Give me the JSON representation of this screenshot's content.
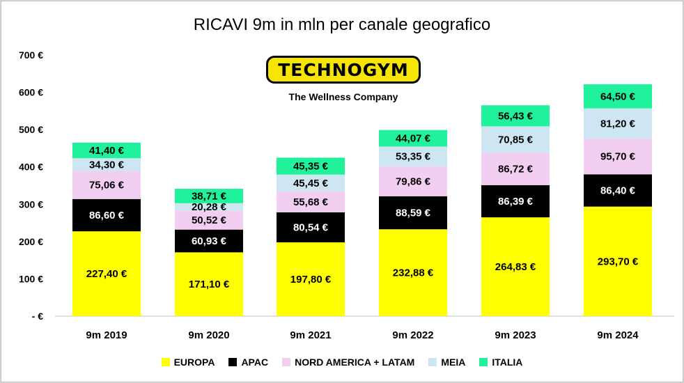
{
  "chart_data": {
    "type": "bar",
    "stacked": true,
    "title": "RICAVI 9m in mln per canale geografico",
    "categories": [
      "9m 2019",
      "9m 2020",
      "9m 2021",
      "9m 2022",
      "9m 2023",
      "9m 2024"
    ],
    "ylim": [
      0,
      700
    ],
    "yticks": [
      0,
      100,
      200,
      300,
      400,
      500,
      600,
      700
    ],
    "ytick_labels": [
      "- €",
      "100 €",
      "200 €",
      "300 €",
      "400 €",
      "500 €",
      "600 €",
      "700 €"
    ],
    "grid": false,
    "legend_position": "bottom",
    "series": [
      {
        "name": "EUROPA",
        "color": "#ffff00",
        "label_color": "#000000",
        "values": [
          227.4,
          171.1,
          197.8,
          232.88,
          264.83,
          293.7
        ],
        "labels": [
          "227,40 €",
          "171,10 €",
          "197,80 €",
          "232,88 €",
          "264,83 €",
          "293,70 €"
        ]
      },
      {
        "name": "APAC",
        "color": "#000000",
        "label_color": "#ffffff",
        "values": [
          86.6,
          60.93,
          80.54,
          88.59,
          86.39,
          86.4
        ],
        "labels": [
          "86,60 €",
          "60,93 €",
          "80,54 €",
          "88,59 €",
          "86,39 €",
          "86,40 €"
        ]
      },
      {
        "name": "NORD AMERICA + LATAM",
        "color": "#f2cef0",
        "label_color": "#000000",
        "values": [
          75.06,
          50.52,
          55.68,
          79.86,
          86.72,
          95.7
        ],
        "labels": [
          "75,06 €",
          "50,52 €",
          "55,68 €",
          "79,86 €",
          "86,72 €",
          "95,70 €"
        ]
      },
      {
        "name": "MEIA",
        "color": "#cde6f2",
        "label_color": "#000000",
        "values": [
          34.3,
          20.28,
          45.45,
          53.35,
          70.85,
          81.2
        ],
        "labels": [
          "34,30 €",
          "20,28 €",
          "45,45 €",
          "53,35 €",
          "70,85 €",
          "81,20 €"
        ]
      },
      {
        "name": "ITALIA",
        "color": "#1ff29b",
        "label_color": "#000000",
        "values": [
          41.4,
          38.71,
          45.35,
          44.07,
          56.43,
          64.5
        ],
        "labels": [
          "41,40 €",
          "38,71 €",
          "45,35 €",
          "44,07 €",
          "56,43 €",
          "64,50 €"
        ]
      }
    ]
  },
  "logo": {
    "brand": "TECHNOGYM",
    "tagline": "The Wellness Company"
  }
}
